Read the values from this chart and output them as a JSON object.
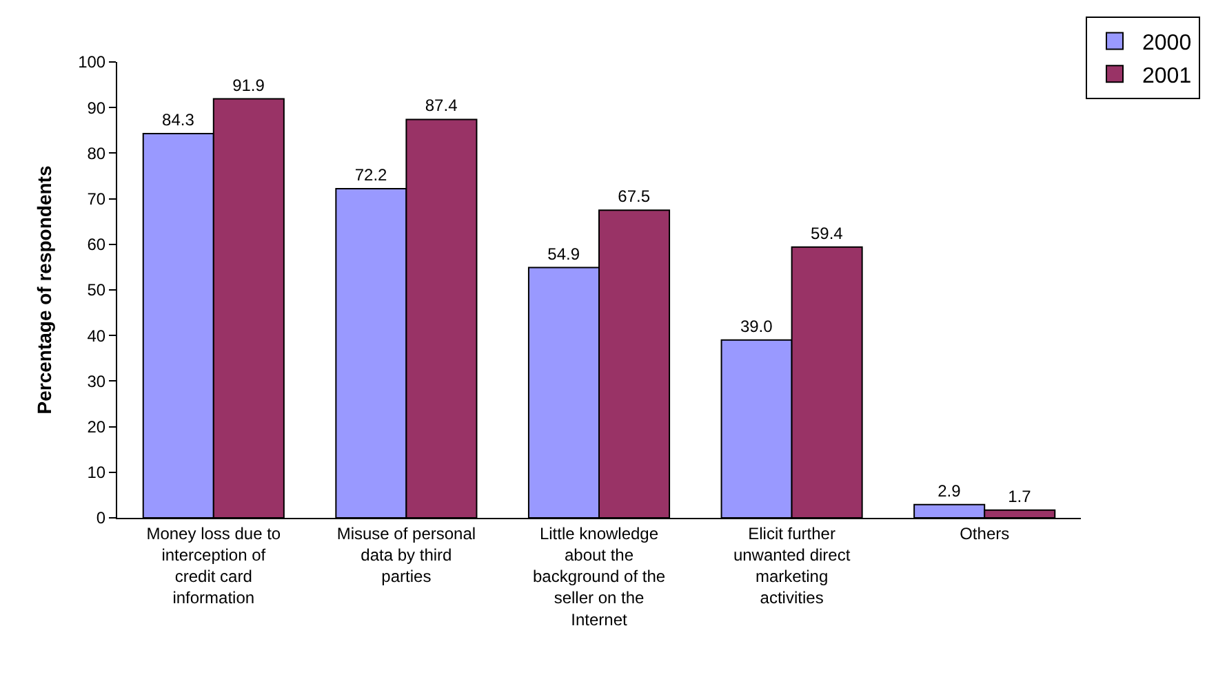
{
  "chart_data": {
    "type": "bar",
    "ylabel": "Percentage of respondents",
    "categories": [
      "Money loss due to interception of credit card information",
      "Misuse of personal data by third parties",
      "Little knowledge about the background of the seller on the Internet",
      "Elicit further unwanted direct marketing activities",
      "Others"
    ],
    "series": [
      {
        "name": "2000",
        "color": "#9999ff",
        "values": [
          84.3,
          72.2,
          54.9,
          39.0,
          2.9
        ],
        "value_labels": [
          "84.3",
          "72.2",
          "54.9",
          "39.0",
          "2.9"
        ]
      },
      {
        "name": "2001",
        "color": "#993366",
        "values": [
          91.9,
          87.4,
          67.5,
          59.4,
          1.7
        ],
        "value_labels": [
          "91.9",
          "87.4",
          "67.5",
          "59.4",
          "1.7"
        ]
      }
    ],
    "ylim": [
      0,
      100
    ],
    "yticks": [
      0,
      10,
      20,
      30,
      40,
      50,
      60,
      70,
      80,
      90,
      100
    ],
    "legend": "top right"
  }
}
